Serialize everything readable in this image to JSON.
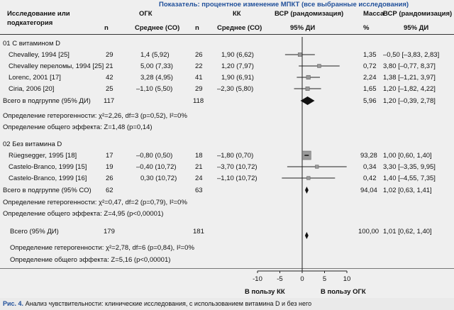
{
  "header": {
    "title": "Показатель: процентное изменение МПКТ (все выбранные исследования)",
    "col_study": [
      "Исследование или",
      "подкатегория"
    ],
    "col_ogk": "ОГК",
    "col_kk": "КК",
    "col_vsr1": "ВСР (рандомизация)",
    "col_weight": "Масса",
    "col_vsr2": "ВСР (рандомизация)",
    "sub_n": "n",
    "sub_mean": "Среднее (СО)",
    "sub_ci": "95% ДИ",
    "sub_pct": "%"
  },
  "groups": [
    {
      "label": "01 С витамином D",
      "rows": [
        {
          "study": "Chevalley, 1994 [25]",
          "n1": "29",
          "m1": "1,4 (5,92)",
          "n2": "26",
          "m2": "1,90 (6,62)",
          "w": "1,35",
          "ci": "–0,50 [–3,83, 2,83]"
        },
        {
          "study": "Chevalley переломы, 1994 [25]",
          "n1": "21",
          "m1": "5,00 (7,33)",
          "n2": "22",
          "m2": "1,20 (7,97)",
          "w": "0,72",
          "ci": "3,80 [–0,77, 8,37]"
        },
        {
          "study": "Lorenc, 2001 [17]",
          "n1": "42",
          "m1": "3,28 (4,95)",
          "n2": "41",
          "m2": "1,90 (6,91)",
          "w": "2,24",
          "ci": "1,38 [–1,21, 3,97]"
        },
        {
          "study": "Ciria, 2006 [20]",
          "n1": "25",
          "m1": "–1,10 (5,50)",
          "n2": "29",
          "m2": "–2,30 (5,80)",
          "w": "1,65",
          "ci": "1,20 [–1,82, 4,22]"
        }
      ],
      "subtotal": {
        "label": "Всего в подгруппе (95% ДИ)",
        "n1": "117",
        "n2": "118",
        "w": "5,96",
        "ci": "1,20 [–0,39, 2,78]"
      },
      "het": "Определение гетерогенности: χ²=2,26, df=3 (p=0,52), I²=0%",
      "overall": "Определение общего эффекта: Z=1,48 (p=0,14)"
    },
    {
      "label": "02 Без витамина D",
      "rows": [
        {
          "study": "Rüegsegger, 1995 [18]",
          "n1": "17",
          "m1": "–0,80 (0,50)",
          "n2": "18",
          "m2": "–1,80 (0,70)",
          "w": "93,28",
          "ci": "1,00 [0,60, 1,40]"
        },
        {
          "study": "Castelo-Branco, 1999 [15]",
          "n1": "19",
          "m1": "–0,40 (10,72)",
          "n2": "21",
          "m2": "–3,70 (10,72)",
          "w": "0,34",
          "ci": "3,30 [–3,35, 9,95]"
        },
        {
          "study": "Castelo-Branco, 1999 [16]",
          "n1": "26",
          "m1": "0,30 (10,72)",
          "n2": "24",
          "m2": "–1,10 (10,72)",
          "w": "0,42",
          "ci": "1,40 [–4,55, 7,35]"
        }
      ],
      "subtotal": {
        "label": "Всего в подгруппе (95% СО)",
        "n1": "62",
        "n2": "63",
        "w": "94,04",
        "ci": "1,02 [0,63, 1,41]"
      },
      "het": "Определение гетерогенности: χ²=0,47, df=2 (p=0,79), I²=0%",
      "overall": "Определение общего эффекта: Z=4,95 (p<0,00001)"
    }
  ],
  "total": {
    "label": "Всего (95% ДИ)",
    "n1": "179",
    "n2": "181",
    "w": "100,00",
    "ci": "1,01 [0,62, 1,40]"
  },
  "total_het": "Определение гетерогенности: χ²=2,78, df=6 (p=0,84), I²=0%",
  "total_overall": "Определение общего эффекта: Z=5,16 (p<0,00001)",
  "axis": {
    "ticks": [
      "-10",
      "-5",
      "0",
      "5",
      "10"
    ],
    "left_label": "В пользу КК",
    "right_label": "В пользу ОГК"
  },
  "caption": {
    "label": "Рис. 4.",
    "text": " Анализ чувствительности: клинические исследования, с использованием витамина D и без него"
  },
  "chart_data": {
    "type": "forest",
    "xlim": [
      -10,
      10
    ],
    "ticks": [
      -10,
      -5,
      0,
      5,
      10
    ],
    "studies": [
      {
        "name": "Chevalley, 1994 [25]",
        "est": -0.5,
        "lo": -3.83,
        "hi": 2.83,
        "weight": 1.35
      },
      {
        "name": "Chevalley переломы, 1994 [25]",
        "est": 3.8,
        "lo": -0.77,
        "hi": 8.37,
        "weight": 0.72
      },
      {
        "name": "Lorenc, 2001 [17]",
        "est": 1.38,
        "lo": -1.21,
        "hi": 3.97,
        "weight": 2.24
      },
      {
        "name": "Ciria, 2006 [20]",
        "est": 1.2,
        "lo": -1.82,
        "hi": 4.22,
        "weight": 1.65
      },
      {
        "name": "Rüegsegger, 1995 [18]",
        "est": 1.0,
        "lo": 0.6,
        "hi": 1.4,
        "weight": 93.28
      },
      {
        "name": "Castelo-Branco, 1999 [15]",
        "est": 3.3,
        "lo": -3.35,
        "hi": 9.95,
        "weight": 0.34
      },
      {
        "name": "Castelo-Branco, 1999 [16]",
        "est": 1.4,
        "lo": -4.55,
        "hi": 7.35,
        "weight": 0.42
      }
    ],
    "pooled": [
      {
        "name": "Всего в подгруппе (95% ДИ)",
        "est": 1.2,
        "lo": -0.39,
        "hi": 2.78
      },
      {
        "name": "Всего в подгруппе (95% СО)",
        "est": 1.02,
        "lo": 0.63,
        "hi": 1.41
      },
      {
        "name": "Всего (95% ДИ)",
        "est": 1.01,
        "lo": 0.62,
        "hi": 1.4
      }
    ]
  }
}
